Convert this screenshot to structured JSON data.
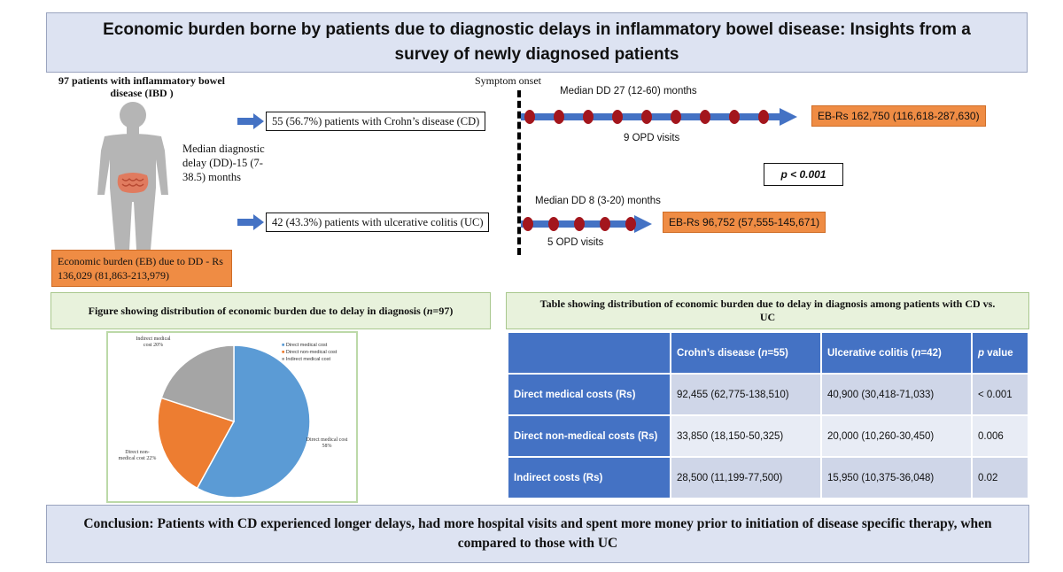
{
  "title": "Economic burden borne by patients due to diagnostic delays in inflammatory bowel disease: Insights from a survey of newly diagnosed patients",
  "left_panel": {
    "ibd_title": "97 patients with inflammatory bowel disease (IBD )",
    "median_dd": "Median diagnostic delay (DD)-15 (7-38.5) months",
    "eb_total": "Economic burden (EB) due to DD - Rs 136,029 (81,863-213,979)"
  },
  "timeline": {
    "onset_label": "Symptom onset",
    "cd": {
      "patients": "55 (56.7%) patients with Crohn’s disease (CD)",
      "median_dd": "Median DD 27 (12-60) months",
      "visits": "9 OPD visits",
      "visit_count": 9,
      "eb": "EB-Rs 162,750 (116,618-287,630)"
    },
    "uc": {
      "patients": "42 (43.3%) patients with ulcerative colitis (UC)",
      "median_dd": "Median DD 8 (3-20) months",
      "visits": "5 OPD visits",
      "visit_count": 5,
      "eb": "EB-Rs 96,752 (57,555-145,671)"
    },
    "p_value": "p < 0.001"
  },
  "figure": {
    "title": "Figure showing distribution of economic burden due to delay in diagnosis (n=97)",
    "legend": [
      "Direct medical cost",
      "Direct non-medical cost",
      "Indirect medical cost"
    ]
  },
  "chart_data": {
    "type": "pie",
    "categories": [
      "Direct medical cost",
      "Direct non-medical cost",
      "Indirect medical cost"
    ],
    "values": [
      58,
      22,
      20
    ],
    "labels": [
      "Direct medical cost 58%",
      "Direct non-medical cost 22%",
      "Indirect medical cost 20%"
    ],
    "colors": [
      "#5b9bd5",
      "#ed7d31",
      "#a5a5a5"
    ],
    "legend_position": "top-right"
  },
  "table": {
    "title": "Table showing distribution of economic burden due to delay in diagnosis among patients with CD vs. UC",
    "headers": [
      "",
      "Crohn’s disease (n=55)",
      "Ulcerative colitis (n=42)",
      "p value"
    ],
    "rows": [
      [
        "Direct medical costs (Rs)",
        "92,455 (62,775-138,510)",
        "40,900 (30,418-71,033)",
        "< 0.001"
      ],
      [
        "Direct non-medical costs (Rs)",
        "33,850 (18,150-50,325)",
        "20,000 (10,260-30,450)",
        "0.006"
      ],
      [
        "Indirect costs (Rs)",
        "28,500 (11,199-77,500)",
        "15,950 (10,375-36,048)",
        "0.02"
      ]
    ]
  },
  "conclusion": "Conclusion: Patients with CD experienced longer delays, had more hospital visits and spent more money prior to initiation of disease specific therapy, when compared to those with UC"
}
